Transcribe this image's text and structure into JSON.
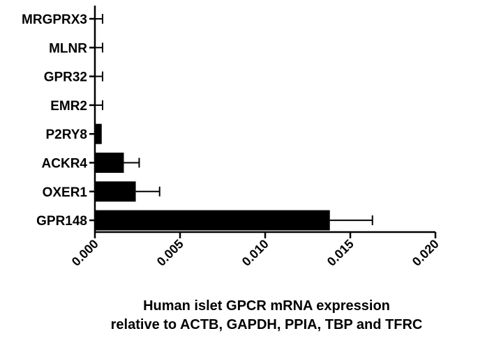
{
  "chart_data": {
    "type": "bar",
    "orientation": "horizontal",
    "categories": [
      "MRGPRX3",
      "MLNR",
      "GPR32",
      "EMR2",
      "P2RY8",
      "ACKR4",
      "OXER1",
      "GPR148"
    ],
    "values": [
      0.0,
      0.0,
      0.0,
      0.0,
      0.0004,
      0.0017,
      0.0024,
      0.0138
    ],
    "errors": [
      0.00045,
      0.00045,
      0.00045,
      0.00045,
      0.0,
      0.0009,
      0.0014,
      0.0025
    ],
    "xlim": [
      0.0,
      0.02
    ],
    "xticks": [
      "0.000",
      "0.005",
      "0.010",
      "0.015",
      "0.020"
    ],
    "xlabel_line1": "Human islet GPCR mRNA expression",
    "xlabel_line2": "relative to ACTB, GAPDH, PPIA, TBP and TFRC",
    "bar_color": "#000000",
    "grid": false,
    "legend": "none"
  }
}
